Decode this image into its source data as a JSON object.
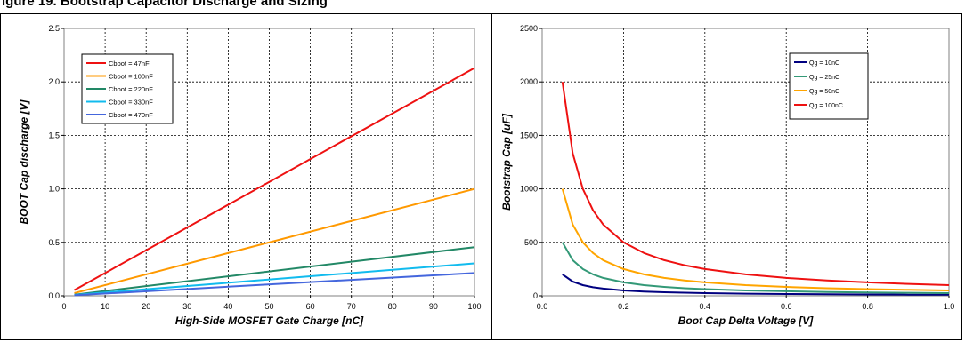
{
  "page": {
    "title": "igure 19. Bootstrap Capacitor Discharge and Sizing"
  },
  "chart_data": [
    {
      "type": "line",
      "xlabel": "High-Side MOSFET Gate Charge [nC]",
      "ylabel": "BOOT Cap discharge [V]",
      "xlim": [
        0,
        100
      ],
      "ylim": [
        0,
        2.5
      ],
      "xticks": [
        "0",
        "10",
        "20",
        "30",
        "40",
        "50",
        "60",
        "70",
        "80",
        "90",
        "100"
      ],
      "yticks": [
        "0.0",
        "0.5",
        "1.0",
        "1.5",
        "2.0",
        "2.5"
      ],
      "grid": true,
      "legend_position": "top-left",
      "series": [
        {
          "name": "Cboot = 47nF",
          "color": "#ee1111",
          "x": [
            2.5,
            100
          ],
          "y": [
            0.053,
            2.13
          ]
        },
        {
          "name": "Cboot = 100nF",
          "color": "#ff9900",
          "x": [
            2.5,
            100
          ],
          "y": [
            0.025,
            1.0
          ]
        },
        {
          "name": "Cboot = 220nF",
          "color": "#228866",
          "x": [
            2.5,
            100
          ],
          "y": [
            0.011,
            0.455
          ]
        },
        {
          "name": "Cboot = 330nF",
          "color": "#11bbee",
          "x": [
            2.5,
            100
          ],
          "y": [
            0.008,
            0.303
          ]
        },
        {
          "name": "Cboot = 470nF",
          "color": "#4466dd",
          "x": [
            2.5,
            100
          ],
          "y": [
            0.005,
            0.213
          ]
        }
      ]
    },
    {
      "type": "line",
      "xlabel": "Boot Cap Delta Voltage [V]",
      "ylabel": "Bootstrap Cap [uF]",
      "xlim": [
        0,
        1.0
      ],
      "ylim": [
        0,
        2500
      ],
      "xticks": [
        "0.0",
        "0.2",
        "0.4",
        "0.6",
        "0.8",
        "1.0"
      ],
      "yticks": [
        "0",
        "500",
        "1000",
        "1500",
        "2000",
        "2500"
      ],
      "grid": true,
      "legend_position": "top-right",
      "x": [
        0.05,
        0.075,
        0.1,
        0.125,
        0.15,
        0.2,
        0.25,
        0.3,
        0.35,
        0.4,
        0.5,
        0.6,
        0.7,
        0.8,
        0.9,
        1.0
      ],
      "series": [
        {
          "name": "Qg = 10nC",
          "color": "#000080",
          "y": [
            200,
            133,
            100,
            80,
            67,
            50,
            40,
            33,
            29,
            25,
            20,
            17,
            14,
            12.5,
            11,
            10
          ]
        },
        {
          "name": "Qg = 25nC",
          "color": "#339977",
          "y": [
            500,
            333,
            250,
            200,
            167,
            125,
            100,
            83,
            71,
            62.5,
            50,
            42,
            36,
            31,
            28,
            25
          ]
        },
        {
          "name": "Qg = 50nC",
          "color": "#ffa500",
          "y": [
            1000,
            667,
            500,
            400,
            333,
            250,
            200,
            167,
            143,
            125,
            100,
            83,
            71,
            62.5,
            56,
            50
          ]
        },
        {
          "name": "Qg = 100nC",
          "color": "#ee1111",
          "y": [
            2000,
            1333,
            1000,
            800,
            667,
            500,
            400,
            333,
            286,
            250,
            200,
            167,
            143,
            125,
            111,
            100
          ]
        }
      ]
    }
  ]
}
